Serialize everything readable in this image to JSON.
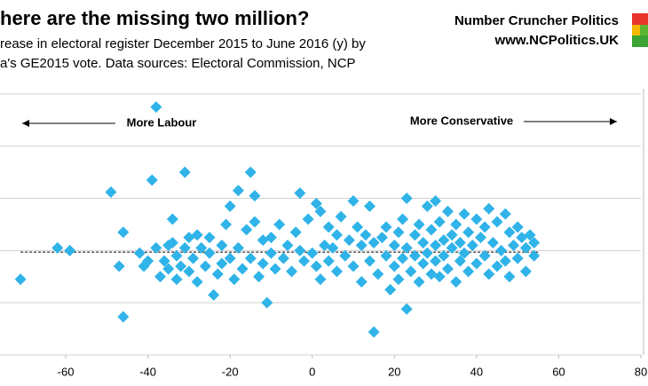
{
  "chart_data": {
    "type": "scatter",
    "title": "here are the missing two million?",
    "subtitle": [
      "rease in electoral register December 2015 to June 2016 (y) by",
      "a's GE2015 vote. Data sources: Electoral Commission, NCP"
    ],
    "brand": "Number Cruncher Politics",
    "brand_url": "www.NCPolitics.UK",
    "annotations": [
      "More Labour",
      "More Conservative"
    ],
    "color": "#2fb3e8",
    "xlim": [
      -76,
      80
    ],
    "xticks": [
      -60,
      -40,
      -20,
      0,
      20,
      40,
      60,
      80
    ],
    "ylim": [
      -2,
      3.1
    ],
    "yticks": [
      -2,
      -1,
      0,
      1,
      2,
      3
    ],
    "grid": true,
    "reference_line": {
      "x": [
        -71,
        55
      ],
      "y": [
        -0.03,
        -0.03
      ]
    },
    "x": [
      -71,
      -62,
      -59,
      -49,
      -46,
      -47,
      -46,
      -42,
      -41,
      -40,
      -39,
      -38,
      -38,
      -37,
      -36,
      -35,
      -35,
      -34,
      -34,
      -33,
      -33,
      -32,
      -31,
      -31,
      -30,
      -30,
      -29,
      -28,
      -28,
      -27,
      -26,
      -25,
      -25,
      -24,
      -23,
      -22,
      -22,
      -21,
      -20,
      -20,
      -19,
      -18,
      -18,
      -17,
      -16,
      -15,
      -15,
      -14,
      -14,
      -13,
      -12,
      -12,
      -11,
      -10,
      -10,
      -9,
      -8,
      -7,
      -6,
      -5,
      -4,
      -3,
      -3,
      -2,
      -1,
      0,
      1,
      1,
      2,
      2,
      3,
      4,
      4,
      5,
      6,
      6,
      7,
      8,
      9,
      10,
      10,
      11,
      12,
      12,
      13,
      14,
      14,
      15,
      15,
      16,
      17,
      18,
      18,
      19,
      20,
      20,
      21,
      21,
      22,
      22,
      23,
      23,
      23,
      24,
      25,
      25,
      26,
      26,
      27,
      27,
      28,
      28,
      29,
      29,
      30,
      30,
      30,
      31,
      31,
      32,
      32,
      33,
      33,
      34,
      34,
      35,
      35,
      36,
      36,
      37,
      37,
      38,
      38,
      39,
      40,
      40,
      41,
      42,
      42,
      43,
      43,
      44,
      45,
      45,
      46,
      47,
      47,
      48,
      48,
      49,
      50,
      50,
      51,
      52,
      52,
      53,
      54,
      54
    ],
    "y": [
      -0.55,
      0.05,
      0.0,
      1.12,
      0.35,
      -0.3,
      -1.27,
      -0.05,
      -0.3,
      -0.2,
      1.35,
      2.75,
      0.05,
      -0.5,
      -0.2,
      0.1,
      -0.35,
      0.15,
      0.6,
      -0.1,
      -0.55,
      -0.3,
      1.5,
      0.05,
      -0.4,
      0.25,
      -0.15,
      -0.6,
      0.3,
      0.05,
      -0.3,
      0.25,
      -0.05,
      -0.85,
      -0.45,
      0.1,
      -0.25,
      0.5,
      -0.15,
      0.85,
      -0.55,
      1.15,
      0.05,
      -0.35,
      0.4,
      1.5,
      -0.15,
      1.05,
      0.55,
      -0.5,
      0.2,
      -0.25,
      -1.0,
      0.25,
      -0.05,
      -0.35,
      0.5,
      -0.15,
      0.1,
      -0.4,
      0.35,
      1.1,
      0.0,
      -0.2,
      0.6,
      -0.05,
      -0.3,
      0.9,
      0.75,
      -0.55,
      0.1,
      0.45,
      -0.2,
      0.05,
      -0.4,
      0.3,
      0.65,
      -0.1,
      0.2,
      0.95,
      -0.3,
      0.45,
      0.1,
      -0.6,
      0.3,
      -0.2,
      0.85,
      -1.56,
      0.15,
      -0.45,
      0.25,
      -0.1,
      0.45,
      -0.75,
      0.1,
      -0.3,
      0.35,
      -0.55,
      0.6,
      -0.15,
      1.0,
      -1.12,
      0.05,
      -0.4,
      0.3,
      -0.1,
      0.5,
      -0.6,
      0.15,
      -0.25,
      0.85,
      -0.05,
      0.4,
      -0.45,
      0.95,
      0.1,
      -0.2,
      0.55,
      -0.5,
      0.2,
      -0.1,
      0.75,
      -0.35,
      0.3,
      0.05,
      -0.6,
      0.5,
      0.15,
      -0.2,
      0.7,
      -0.05,
      0.35,
      -0.4,
      0.1,
      0.6,
      -0.25,
      0.25,
      -0.1,
      0.45,
      0.8,
      -0.45,
      0.15,
      -0.3,
      0.55,
      0.0,
      0.7,
      -0.2,
      0.35,
      -0.5,
      0.1,
      0.45,
      -0.15,
      0.25,
      -0.4,
      0.05,
      0.3,
      -0.1,
      0.15
    ]
  }
}
